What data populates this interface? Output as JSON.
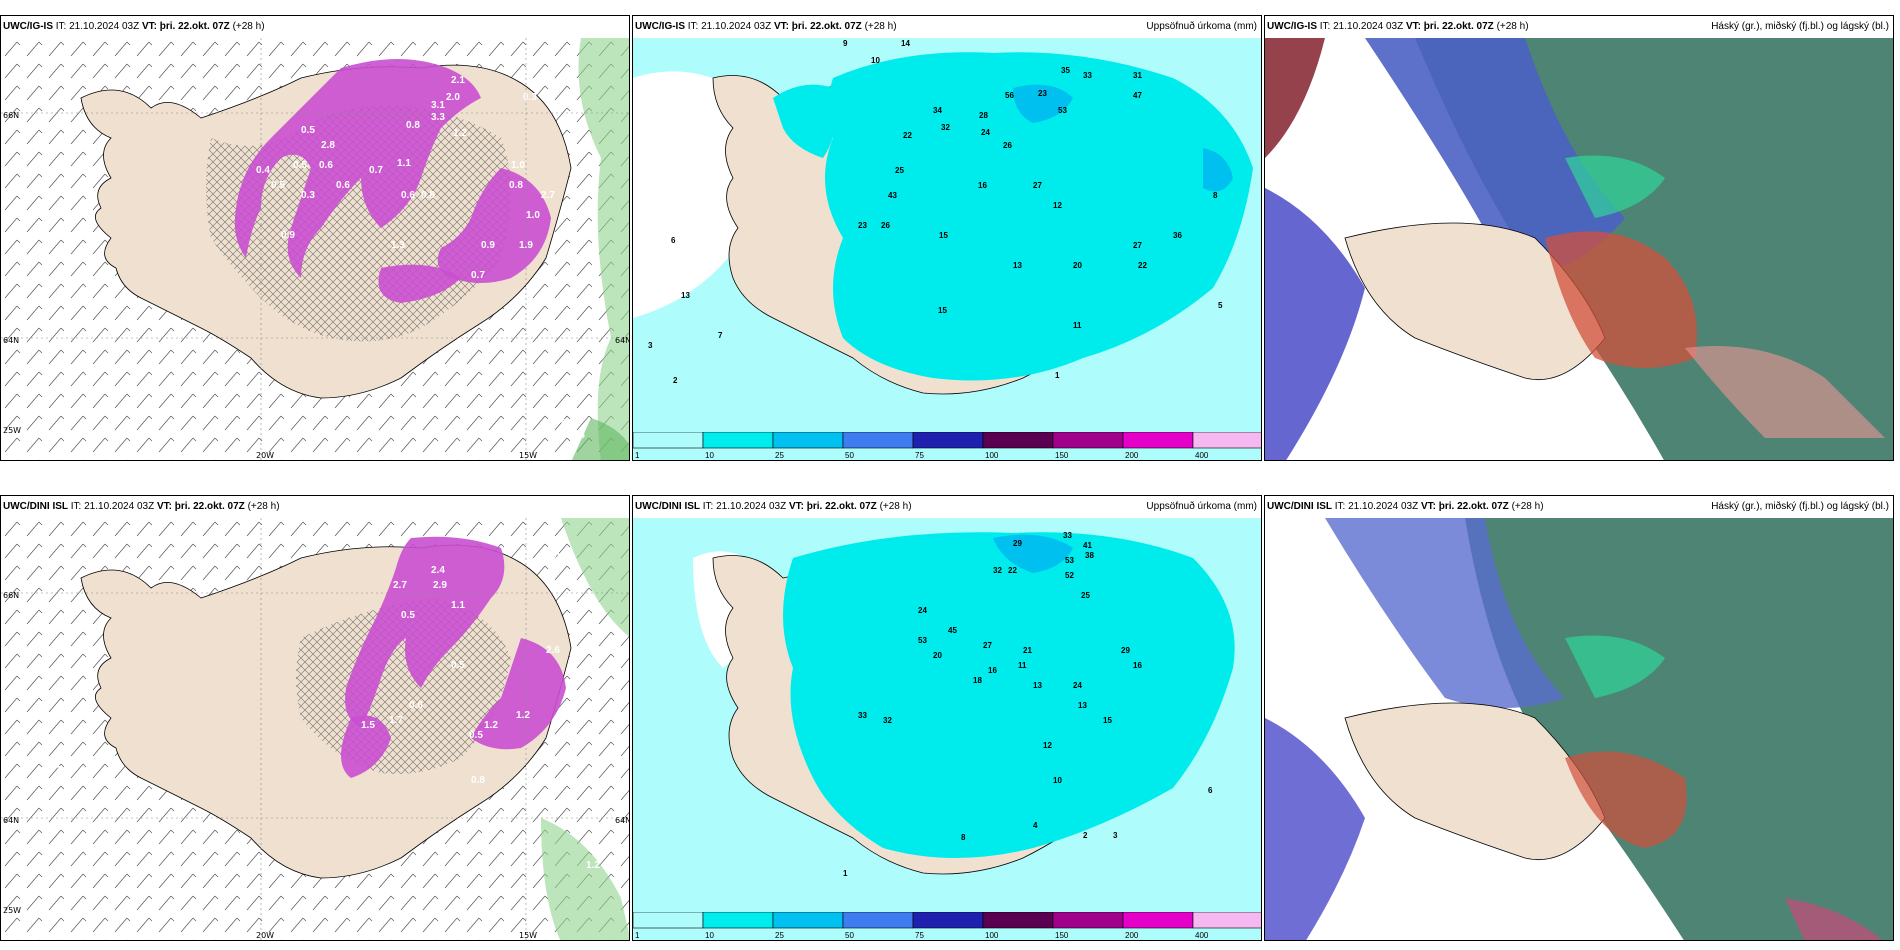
{
  "panels": [
    {
      "model": "UWC/IG-IS",
      "it_label": "IT:",
      "it": "21.10.2024 03Z",
      "vt_label": "VT:",
      "vt": "þri. 22.okt. 07Z",
      "lead": "(+28 h)",
      "right_title": ""
    },
    {
      "model": "UWC/IG-IS",
      "it_label": "IT:",
      "it": "21.10.2024 03Z",
      "vt_label": "VT:",
      "vt": "þri. 22.okt. 07Z",
      "lead": "(+28 h)",
      "right_title": "Uppsöfnuð úrkoma (mm)"
    },
    {
      "model": "UWC/IG-IS",
      "it_label": "IT:",
      "it": "21.10.2024 03Z",
      "vt_label": "VT:",
      "vt": "þri. 22.okt. 07Z",
      "lead": "(+28 h)",
      "right_title": "Háský (gr.), miðský (fj.bl.) og lágský (bl.)"
    },
    {
      "model": "UWC/DINI ISL",
      "it_label": "IT:",
      "it": "21.10.2024 03Z",
      "vt_label": "VT:",
      "vt": "þri. 22.okt. 07Z",
      "lead": "(+28 h)",
      "right_title": ""
    },
    {
      "model": "UWC/DINI ISL",
      "it_label": "IT:",
      "it": "21.10.2024 03Z",
      "vt_label": "VT:",
      "vt": "þri. 22.okt. 07Z",
      "lead": "(+28 h)",
      "right_title": "Uppsöfnuð úrkoma (mm)"
    },
    {
      "model": "UWC/DINI ISL",
      "it_label": "IT:",
      "it": "21.10.2024 03Z",
      "vt_label": "VT:",
      "vt": "þri. 22.okt. 07Z",
      "lead": "(+28 h)",
      "right_title": "Háský (gr.), miðský (fj.bl.) og lágský (bl.)"
    }
  ],
  "grid_labels": {
    "lon": [
      "20W",
      "15W"
    ],
    "lat_left": [
      "66N",
      "64N",
      "25W"
    ],
    "lat_right": [
      "64N"
    ]
  },
  "precip_legend": {
    "ticks": [
      "1",
      "10",
      "25",
      "50",
      "75",
      "100",
      "150",
      "200",
      "400"
    ],
    "colors": [
      "#aefcfc",
      "#00ebeb",
      "#00c0f0",
      "#3f7cf0",
      "#2020b0",
      "#5a0050",
      "#a0008c",
      "#e400c8",
      "#f5b8f0"
    ]
  },
  "wind_values_top": [
    "2.1",
    "3.1",
    "3.3",
    "2.0",
    "1.2",
    "0.5",
    "0.3",
    "0.8",
    "0.6",
    "0.8",
    "1.0",
    "0.8",
    "0.9",
    "1.0",
    "2.7",
    "1.9",
    "0.6",
    "0.7",
    "1.1",
    "0.5",
    "2.8",
    "0.4",
    "0.5",
    "0.3",
    "0.6",
    "0.9",
    "1.3",
    "0.7",
    "0.6",
    "0.8"
  ],
  "wind_values_bottom": [
    "2.4",
    "2.9",
    "2.7",
    "1.1",
    "0.5",
    "0.5",
    "2.6",
    "1.2",
    "0.5",
    "0.6",
    "1.7",
    "1.5",
    "0.8",
    "1.1",
    "1.2",
    "1.2",
    "0.7"
  ],
  "precip_values_top": [
    "9",
    "14",
    "10",
    "35",
    "33",
    "31",
    "47",
    "56",
    "53",
    "34",
    "32",
    "28",
    "24",
    "23",
    "22",
    "26",
    "16",
    "27",
    "43",
    "25",
    "23",
    "26",
    "15",
    "12",
    "13",
    "20",
    "27",
    "36",
    "15",
    "22",
    "11",
    "8",
    "6",
    "13",
    "7",
    "2",
    "3",
    "5",
    "1"
  ],
  "precip_values_bottom": [
    "29",
    "33",
    "41",
    "53",
    "38",
    "52",
    "25",
    "32",
    "22",
    "24",
    "45",
    "53",
    "20",
    "27",
    "16",
    "21",
    "11",
    "18",
    "13",
    "24",
    "29",
    "16",
    "32",
    "33",
    "15",
    "12",
    "13",
    "10",
    "4",
    "2",
    "3",
    "8",
    "6",
    "1"
  ]
}
